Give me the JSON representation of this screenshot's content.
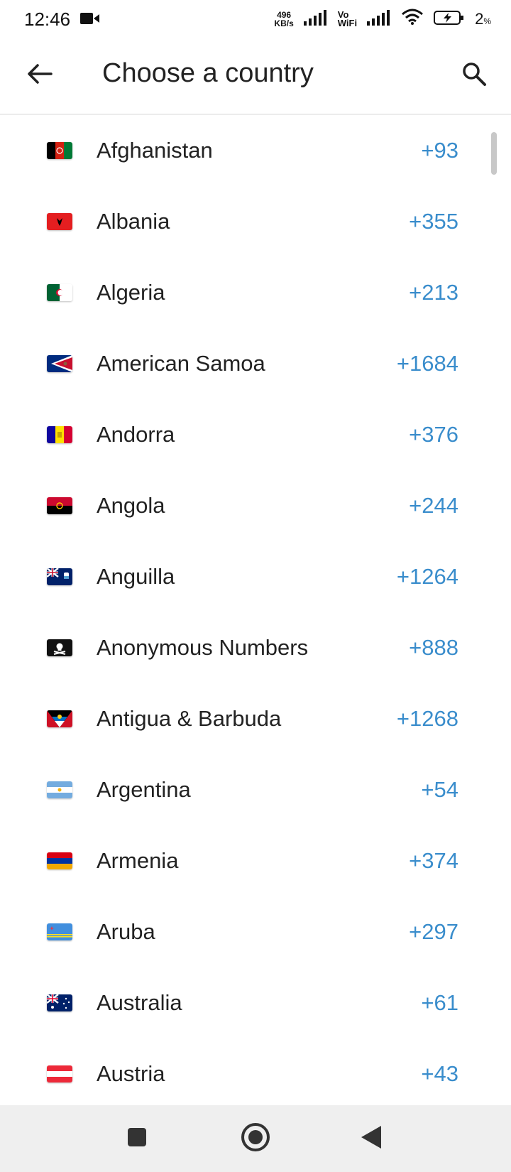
{
  "status_bar": {
    "time": "12:46",
    "net_speed_value": "496",
    "net_speed_unit": "KB/s",
    "vowifi_top": "Vo",
    "vowifi_bottom": "WiFi",
    "battery_percent": "2",
    "battery_unit": "%"
  },
  "app_bar": {
    "title": "Choose a country",
    "back_icon": "arrow-left-icon",
    "search_icon": "search-icon"
  },
  "countries": [
    {
      "name": "Afghanistan",
      "code": "+93",
      "flag": "af"
    },
    {
      "name": "Albania",
      "code": "+355",
      "flag": "al"
    },
    {
      "name": "Algeria",
      "code": "+213",
      "flag": "dz"
    },
    {
      "name": "American Samoa",
      "code": "+1684",
      "flag": "as"
    },
    {
      "name": "Andorra",
      "code": "+376",
      "flag": "ad"
    },
    {
      "name": "Angola",
      "code": "+244",
      "flag": "ao"
    },
    {
      "name": "Anguilla",
      "code": "+1264",
      "flag": "ai"
    },
    {
      "name": "Anonymous Numbers",
      "code": "+888",
      "flag": "pirate"
    },
    {
      "name": "Antigua & Barbuda",
      "code": "+1268",
      "flag": "ag"
    },
    {
      "name": "Argentina",
      "code": "+54",
      "flag": "ar"
    },
    {
      "name": "Armenia",
      "code": "+374",
      "flag": "am"
    },
    {
      "name": "Aruba",
      "code": "+297",
      "flag": "aw"
    },
    {
      "name": "Australia",
      "code": "+61",
      "flag": "au"
    },
    {
      "name": "Austria",
      "code": "+43",
      "flag": "at"
    }
  ],
  "colors": {
    "accent": "#3a8dcc",
    "text": "#222222",
    "nav_bar": "#efefef"
  },
  "nav_bar": {
    "recents_icon": "square-icon",
    "home_icon": "circle-icon",
    "back_icon": "triangle-back-icon"
  }
}
